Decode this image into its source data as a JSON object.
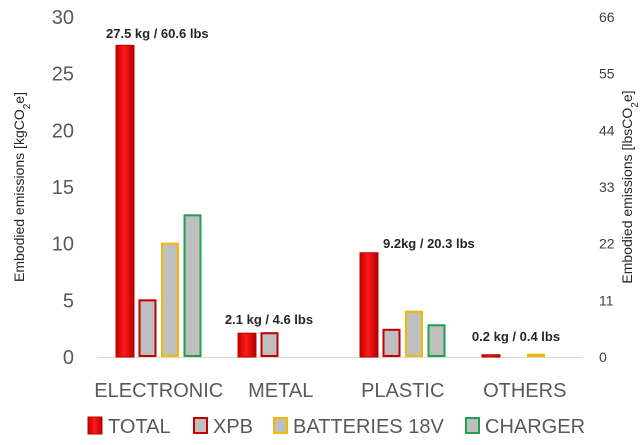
{
  "chart_data": {
    "type": "bar",
    "categories": [
      "ELECTRONIC",
      "METAL",
      "PLASTIC",
      "OTHERS"
    ],
    "series": [
      {
        "name": "TOTAL",
        "values": [
          27.5,
          2.1,
          9.2,
          0.2
        ],
        "color": "#c00000",
        "fill_highlight": "#ff1a1a"
      },
      {
        "name": "XPB",
        "values": [
          5.0,
          2.1,
          2.4,
          0.0
        ],
        "color": "#c00000",
        "fill": "#bfbfbf"
      },
      {
        "name": "BATTERIES 18V",
        "values": [
          10.0,
          0.0,
          4.0,
          0.2
        ],
        "color": "#f5b800",
        "fill": "#bfbfbf"
      },
      {
        "name": "CHARGER",
        "values": [
          12.5,
          0.0,
          2.8,
          0.0
        ],
        "color": "#1fa050",
        "fill": "#bfbfbf"
      }
    ],
    "data_labels": [
      "27.5 kg / 60.6 lbs",
      "2.1 kg / 4.6 lbs",
      "9.2kg / 20.3 lbs",
      "0.2 kg / 0.4 lbs"
    ],
    "ylabel": "Embodied emissions [kgCO₂e]",
    "ylabel_parts": {
      "main": "Embodied emissions [kgCO",
      "sub": "2",
      "tail": "e]"
    },
    "y2label": "Embodied emissions [lbsCO₂e]",
    "y2label_parts": {
      "main": "Embodied emissions [lbsCO",
      "sub": "2",
      "tail": "e]"
    },
    "ylim": [
      0,
      30
    ],
    "yticks": [
      0,
      5,
      10,
      15,
      20,
      25,
      30
    ],
    "y2lim": [
      0,
      66
    ],
    "y2ticks": [
      0,
      11,
      22,
      33,
      44,
      55,
      66
    ],
    "grid": false,
    "legend_position": "bottom"
  }
}
